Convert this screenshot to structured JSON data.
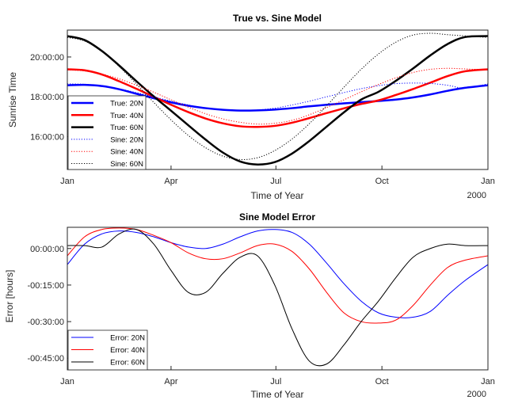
{
  "chart_data": [
    {
      "type": "line",
      "title": "True vs. Sine Model",
      "xlabel": "Time of Year",
      "ylabel": "Sunrise Time",
      "x_ticks": [
        "Jan",
        "Apr",
        "Jul",
        "Oct",
        "Jan"
      ],
      "x_tick_days": [
        0,
        90,
        181,
        273,
        365
      ],
      "x_secondary_label": "2000",
      "xlim": [
        0,
        365
      ],
      "y_ticks": [
        "16:00:00",
        "18:00:00",
        "20:00:00"
      ],
      "y_tick_values": [
        16,
        18,
        20
      ],
      "ylim": [
        14.35,
        21.35
      ],
      "legend_position": "bottom-left",
      "x": [
        0,
        15,
        30,
        45,
        60,
        75,
        90,
        105,
        120,
        135,
        150,
        165,
        180,
        195,
        210,
        225,
        240,
        255,
        270,
        285,
        300,
        315,
        330,
        345,
        365
      ],
      "series": [
        {
          "name": "True: 20N",
          "color": "#0000ff",
          "style": "solid",
          "width": 2.5,
          "values": [
            18.58,
            18.6,
            18.54,
            18.38,
            18.15,
            17.93,
            17.72,
            17.55,
            17.43,
            17.35,
            17.31,
            17.32,
            17.36,
            17.43,
            17.52,
            17.6,
            17.67,
            17.73,
            17.79,
            17.86,
            17.97,
            18.12,
            18.3,
            18.45,
            18.58
          ]
        },
        {
          "name": "True: 40N",
          "color": "#ff0000",
          "style": "solid",
          "width": 2.5,
          "values": [
            19.38,
            19.33,
            19.12,
            18.78,
            18.4,
            18.0,
            17.6,
            17.23,
            16.91,
            16.67,
            16.52,
            16.49,
            16.54,
            16.7,
            16.93,
            17.18,
            17.42,
            17.64,
            17.82,
            18.09,
            18.39,
            18.71,
            19.04,
            19.28,
            19.38
          ]
        },
        {
          "name": "True: 60N",
          "color": "#000000",
          "style": "solid",
          "width": 2.5,
          "values": [
            21.05,
            20.85,
            20.3,
            19.57,
            18.78,
            18.02,
            17.3,
            16.57,
            15.85,
            15.2,
            14.75,
            14.6,
            14.72,
            15.15,
            15.78,
            16.5,
            17.22,
            17.86,
            18.25,
            18.8,
            19.42,
            20.08,
            20.65,
            21.0,
            21.05
          ]
        },
        {
          "name": "Sine: 20N",
          "color": "#0000ff",
          "style": "dotted",
          "width": 1,
          "values": [
            18.65,
            18.63,
            18.55,
            18.4,
            18.21,
            18.0,
            17.78,
            17.59,
            17.44,
            17.34,
            17.31,
            17.34,
            17.43,
            17.59,
            17.78,
            18.0,
            18.21,
            18.41,
            18.56,
            18.66,
            18.69,
            18.67,
            18.58,
            18.44,
            18.65
          ]
        },
        {
          "name": "Sine: 40N",
          "color": "#ff0000",
          "style": "dotted",
          "width": 1,
          "values": [
            19.35,
            19.3,
            19.14,
            18.9,
            18.58,
            18.23,
            17.85,
            17.48,
            17.15,
            16.89,
            16.72,
            16.63,
            16.67,
            16.82,
            17.1,
            17.46,
            17.85,
            18.25,
            18.62,
            18.95,
            19.22,
            19.38,
            19.43,
            19.4,
            19.35
          ]
        },
        {
          "name": "Sine: 60N",
          "color": "#000000",
          "style": "dotted",
          "width": 1,
          "values": [
            20.98,
            20.8,
            20.28,
            19.52,
            18.64,
            17.72,
            16.84,
            16.06,
            15.44,
            15.02,
            14.85,
            14.94,
            15.3,
            15.88,
            16.65,
            17.55,
            18.48,
            19.38,
            20.15,
            20.74,
            21.1,
            21.19,
            21.12,
            21.06,
            20.98
          ]
        }
      ]
    },
    {
      "type": "line",
      "title": "Sine Model Error",
      "xlabel": "Time of Year",
      "ylabel": "Error [hours]",
      "x_ticks": [
        "Jan",
        "Apr",
        "Jul",
        "Oct",
        "Jan"
      ],
      "x_tick_days": [
        0,
        90,
        181,
        273,
        365
      ],
      "x_secondary_label": "2000",
      "xlim": [
        0,
        365
      ],
      "y_ticks": [
        "-00:45:00",
        "-00:30:00",
        "-00:15:00",
        "00:00:00"
      ],
      "y_tick_values": [
        -0.75,
        -0.5,
        -0.25,
        0
      ],
      "ylim": [
        -0.83,
        0.145
      ],
      "legend_position": "bottom-left",
      "x": [
        0,
        15,
        30,
        45,
        60,
        75,
        90,
        105,
        120,
        135,
        150,
        165,
        180,
        195,
        210,
        225,
        240,
        255,
        270,
        285,
        300,
        315,
        330,
        345,
        365
      ],
      "series": [
        {
          "name": "Error: 20N",
          "color": "#0000ff",
          "style": "solid",
          "width": 1,
          "values": [
            -0.11,
            0.03,
            0.1,
            0.12,
            0.11,
            0.08,
            0.04,
            0.01,
            0.0,
            0.03,
            0.08,
            0.12,
            0.13,
            0.11,
            0.03,
            -0.1,
            -0.24,
            -0.36,
            -0.44,
            -0.47,
            -0.47,
            -0.43,
            -0.32,
            -0.22,
            -0.11
          ]
        },
        {
          "name": "Error: 40N",
          "color": "#ff0000",
          "style": "solid",
          "width": 1,
          "values": [
            -0.05,
            0.08,
            0.13,
            0.14,
            0.13,
            0.09,
            0.04,
            -0.03,
            -0.07,
            -0.07,
            -0.03,
            0.02,
            0.03,
            -0.02,
            -0.14,
            -0.3,
            -0.44,
            -0.5,
            -0.51,
            -0.49,
            -0.39,
            -0.25,
            -0.13,
            -0.08,
            -0.05
          ]
        },
        {
          "name": "Error: 60N",
          "color": "#000000",
          "style": "solid",
          "width": 1,
          "values": [
            0.02,
            0.02,
            0.01,
            0.1,
            0.13,
            0.03,
            -0.15,
            -0.3,
            -0.3,
            -0.17,
            -0.06,
            -0.05,
            -0.25,
            -0.55,
            -0.77,
            -0.79,
            -0.66,
            -0.5,
            -0.36,
            -0.2,
            -0.06,
            0.0,
            0.03,
            0.02,
            0.02
          ]
        }
      ]
    }
  ]
}
